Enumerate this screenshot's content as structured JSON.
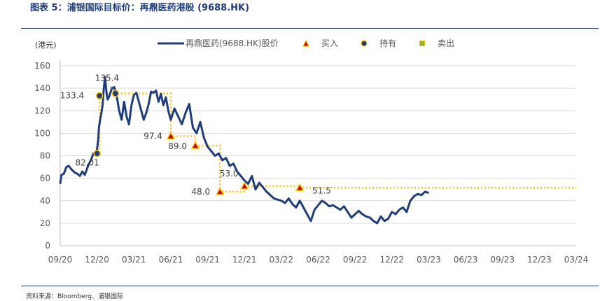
{
  "header": {
    "title": "图表 5：浦银国际目标价：再鼎医药港股 (9688.HK)"
  },
  "footer": {
    "source": "资料来源：Bloomberg、浦银国际"
  },
  "chart_data": {
    "type": "line",
    "unit_label": "(港元)",
    "ylim": [
      0,
      160
    ],
    "yticks": [
      0,
      20,
      40,
      60,
      80,
      100,
      120,
      140,
      160
    ],
    "xticks": [
      "09/20",
      "12/20",
      "03/21",
      "06/21",
      "09/21",
      "12/21",
      "03/22",
      "06/22",
      "09/22",
      "12/22",
      "03/23",
      "06/23",
      "09/23",
      "12/23",
      "03/24"
    ],
    "grid": true,
    "legend_position": "top",
    "legend": [
      {
        "key": "price",
        "label": "再鼎医药(9688.HK)股价",
        "color": "#1f3d7a"
      },
      {
        "key": "buy",
        "label": "买入",
        "color": "#c00000"
      },
      {
        "key": "hold",
        "label": "持有",
        "color": "#1f3d7a"
      },
      {
        "key": "sell",
        "label": "卖出",
        "color": "#70ad47"
      }
    ],
    "price_series": {
      "name": "再鼎医药(9688.HK)股价",
      "color": "#1f3d7a",
      "x": [
        0.0,
        0.1,
        0.3,
        0.5,
        0.7,
        0.9,
        1.0,
        1.2,
        1.4,
        1.6,
        1.8,
        2.0,
        2.3,
        2.5,
        2.7,
        2.9,
        3.0,
        3.1,
        3.15,
        3.25,
        3.35,
        3.45,
        3.55,
        3.65,
        3.75,
        3.85,
        4.0,
        4.2,
        4.4,
        4.6,
        4.8,
        5.0,
        5.2,
        5.4,
        5.6,
        5.8,
        6.0,
        6.2,
        6.4,
        6.6,
        6.8,
        7.0,
        7.2,
        7.4,
        7.6,
        7.8,
        8.0,
        8.2,
        8.4,
        8.6,
        8.8,
        9.0,
        9.3,
        9.6,
        9.9,
        10.2,
        10.5,
        10.8,
        11.1,
        11.4,
        11.7,
        12.0,
        12.3,
        12.6,
        12.9,
        13.2,
        13.5,
        13.8,
        14.1,
        14.4,
        14.7,
        15.0,
        15.3,
        15.6,
        15.9,
        16.2,
        16.5,
        16.8,
        17.1,
        17.4,
        17.7,
        18.0,
        18.3,
        18.6,
        18.9,
        19.2,
        19.5,
        19.8,
        20.1,
        20.4,
        20.7,
        21.0,
        21.3,
        21.6,
        21.9,
        22.2,
        22.5,
        22.8,
        23.1,
        23.4,
        23.7,
        24.0,
        24.3,
        24.6,
        24.9,
        25.2,
        25.5,
        25.8,
        26.1,
        26.4,
        26.7,
        27.0,
        27.3,
        27.6,
        27.9,
        28.2,
        28.5,
        28.8,
        29.1,
        29.4,
        29.7,
        30.0
      ],
      "values": [
        55,
        63,
        64,
        70,
        71,
        68,
        67,
        65,
        64,
        62,
        66,
        63,
        72,
        76,
        82,
        82,
        86,
        95,
        105,
        112,
        118,
        125,
        140,
        150,
        138,
        130,
        133,
        140,
        141,
        133,
        120,
        112,
        128,
        115,
        108,
        125,
        134,
        136,
        128,
        120,
        112,
        118,
        126,
        137,
        136,
        138,
        128,
        135,
        125,
        132,
        120,
        112,
        122,
        115,
        108,
        118,
        126,
        105,
        100,
        110,
        96,
        88,
        84,
        80,
        82,
        76,
        78,
        71,
        73,
        66,
        62,
        58,
        55,
        62,
        50,
        56,
        52,
        48,
        45,
        42,
        41,
        40,
        38,
        42,
        37,
        34,
        40,
        34,
        28,
        22,
        32,
        36,
        40,
        38,
        35,
        36,
        34,
        32,
        35,
        30,
        25,
        28,
        31,
        28,
        26,
        25,
        22,
        20,
        26,
        22,
        24,
        30,
        28,
        32,
        34,
        30,
        40,
        44,
        46,
        45,
        48,
        47
      ]
    },
    "target_price_steps": [
      {
        "date_x": 3.0,
        "target": 82.01,
        "label": "82.01",
        "rating": "hold"
      },
      {
        "date_x": 3.2,
        "target": 133.4,
        "label": "133.4",
        "rating": "hold"
      },
      {
        "date_x": 4.5,
        "target": 135.4,
        "label": "135.4",
        "rating": "hold"
      },
      {
        "date_x": 9.0,
        "target": 97.4,
        "label": "97.4",
        "rating": "buy"
      },
      {
        "date_x": 11.0,
        "target": 89.0,
        "label": "89.0",
        "rating": "buy"
      },
      {
        "date_x": 13.0,
        "target": 48.0,
        "label": "48.0",
        "rating": "buy"
      },
      {
        "date_x": 15.0,
        "target": 53.0,
        "label": "53.0",
        "rating": "buy"
      },
      {
        "date_x": 19.5,
        "target": 51.5,
        "label": "51.5",
        "rating": "buy"
      }
    ],
    "target_line_color": "#ffc000"
  }
}
